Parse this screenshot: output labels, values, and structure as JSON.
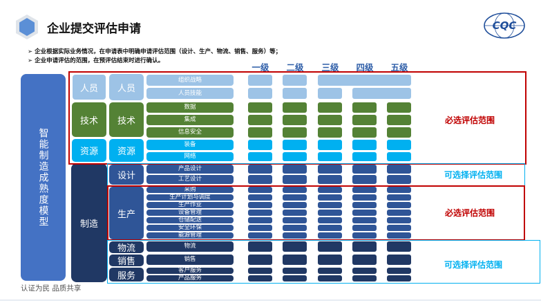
{
  "header": {
    "title": "企业提交评估申请",
    "logo_text": "CQC",
    "bullets": [
      "企业根据实际业务情况，在申请表中明确申请评估范围（设计、生产、物流、销售、服务）等；",
      "企业申请评估的范围，在预评估结束时进行确认。"
    ]
  },
  "levels": [
    "一级",
    "二级",
    "三级",
    "四级",
    "五级"
  ],
  "model": {
    "label": "智能制造成熟度模型",
    "manufacturing_label": "制造"
  },
  "categories": {
    "personnel": "人员",
    "technology": "技术",
    "resources": "资源",
    "design": "设计",
    "production": "生产",
    "logistics": "物流",
    "sales": "销售",
    "service": "服务"
  },
  "subitems": [
    "组织战略",
    "人员技能",
    "数据",
    "集成",
    "信息安全",
    "装备",
    "网络",
    "产品设计",
    "工艺设计",
    "采购",
    "生产计划与调度",
    "生产作业",
    "设备管理",
    "仓储配送",
    "安全环保",
    "能源管理",
    "物流",
    "销售",
    "客户服务",
    "产品服务"
  ],
  "notes": {
    "required_upper": "必选评估范围",
    "optional_design": "可选择评估范围",
    "required_production": "必选评估范围",
    "optional_bottom": "可选择评估范围"
  },
  "colors": {
    "personnel": "#9dc3e6",
    "technology": "#548235",
    "resources": "#00b0f0",
    "manufacturing": "#203864",
    "model": "#4472c4",
    "required": "#c00000",
    "optional": "#00b0f0",
    "level_text": "#2e5ea8"
  },
  "footer": "认证为民  品质共享"
}
